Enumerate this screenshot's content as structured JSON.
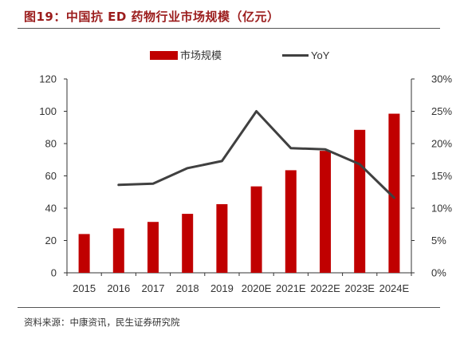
{
  "figure": {
    "title": "图19：中国抗 ED 药物行业市场规模（亿元）",
    "source": "资料来源：中康资讯，民生证券研究院"
  },
  "colors": {
    "bar": "#c00000",
    "line": "#404040",
    "title": "#9b1c1c"
  },
  "chart_data": {
    "type": "bar",
    "title": "图19：中国抗 ED 药物行业市场规模（亿元）",
    "categories": [
      "2015",
      "2016",
      "2017",
      "2018",
      "2019",
      "2020E",
      "2021E",
      "2022E",
      "2023E",
      "2024E"
    ],
    "series": [
      {
        "name": "市场规模",
        "type": "bar",
        "axis": "left",
        "values": [
          24,
          27.5,
          31.5,
          36.5,
          42.5,
          53.5,
          63.5,
          75.5,
          88.5,
          98.5
        ]
      },
      {
        "name": "YoY",
        "type": "line",
        "axis": "right",
        "values": [
          null,
          13.6,
          13.8,
          16.2,
          17.3,
          25.0,
          19.3,
          19.1,
          16.8,
          11.6
        ]
      }
    ],
    "yTicks": [
      "0",
      "20",
      "40",
      "60",
      "80",
      "100",
      "120"
    ],
    "y2Ticks": [
      "0%",
      "5%",
      "10%",
      "15%",
      "20%",
      "25%",
      "30%"
    ],
    "ylim": [
      0,
      120
    ],
    "y2lim": [
      0,
      30
    ],
    "grid": false,
    "legend": "top-center"
  }
}
